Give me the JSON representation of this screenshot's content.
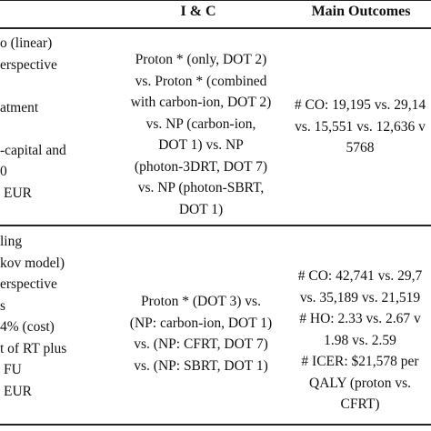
{
  "header": {
    "ic": "I & C",
    "outcomes": "Main Outcomes"
  },
  "rows": [
    {
      "left": [
        "o (linear)",
        "erspective",
        "",
        "atment",
        "",
        "-capital and",
        "0",
        "EUR"
      ],
      "ic": [
        "Proton * (only, DOT 2)",
        "vs. Proton * (combined",
        "with carbon-ion, DOT 2)",
        "vs. NP (carbon-ion,",
        "DOT 1) vs. NP",
        "(photon-3DRT, DOT 7)",
        "vs. NP (photon-SBRT,",
        "DOT 1)"
      ],
      "outcomes": [
        "# CO: 19,195 vs. 29,14",
        "vs. 15,551 vs. 12,636 v",
        "5768"
      ]
    },
    {
      "left": [
        "ling",
        "kov model)",
        "erspective",
        "s",
        "4% (cost)",
        "t of RT plus",
        "FU",
        "EUR"
      ],
      "ic": [
        "Proton * (DOT 3) vs.",
        "(NP: carbon-ion, DOT 1)",
        "vs. (NP: CFRT, DOT 7)",
        "vs. (NP: SBRT, DOT 1)"
      ],
      "outcomes": [
        "# CO: 42,741 vs. 29,7",
        "vs. 35,189 vs. 21,519",
        "# HO: 2.33 vs. 2.67 v",
        "1.98 vs. 2.59",
        "# ICER: $21,578 per",
        "QALY (proton vs.",
        "CFRT)"
      ]
    }
  ]
}
